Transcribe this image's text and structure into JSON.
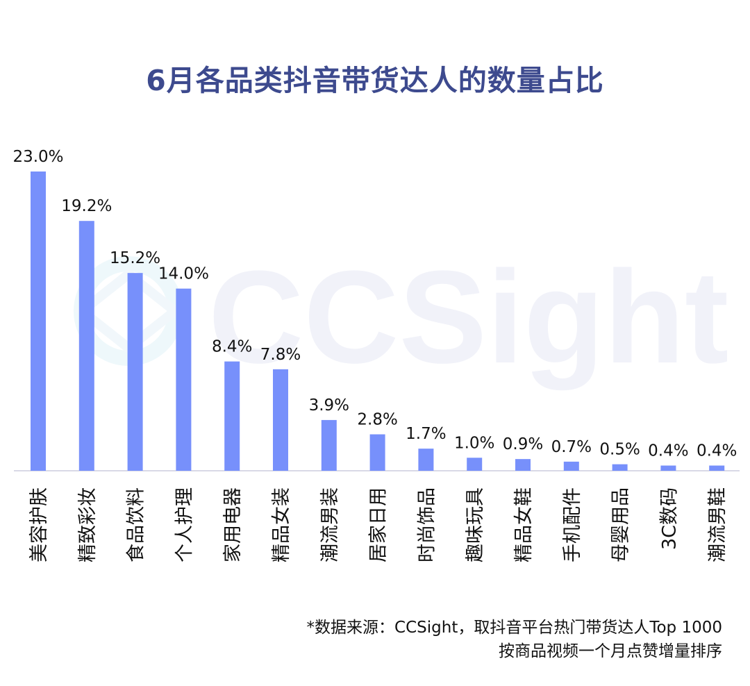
{
  "chart_data": {
    "type": "bar",
    "title": "6月各品类抖音带货达人的数量占比",
    "categories": [
      "美容护肤",
      "精致彩妆",
      "食品饮料",
      "个人护理",
      "家用电器",
      "精品女装",
      "潮流男装",
      "居家日用",
      "时尚饰品",
      "趣味玩具",
      "精品女鞋",
      "手机配件",
      "母婴用品",
      "3C数码",
      "潮流男鞋"
    ],
    "values": [
      23.0,
      19.2,
      15.2,
      14.0,
      8.4,
      7.8,
      3.9,
      2.8,
      1.7,
      1.0,
      0.9,
      0.7,
      0.5,
      0.4,
      0.4
    ],
    "data_labels": [
      "23.0%",
      "19.2%",
      "15.2%",
      "14.0%",
      "8.4%",
      "7.8%",
      "3.9%",
      "2.8%",
      "1.7%",
      "1.0%",
      "0.9%",
      "0.7%",
      "0.5%",
      "0.4%",
      "0.4%"
    ],
    "xlabel": "",
    "ylabel": "",
    "ylim": [
      0,
      23.0
    ],
    "grid": false,
    "legend": "none",
    "bar_color": "#7790fb",
    "axis_color": "#d9d9e6"
  },
  "watermark": {
    "text": "CCSight",
    "color": "#f1f2f9"
  },
  "source": {
    "line1": "*数据来源：CCSight，取抖音平台热门带货达人Top 1000",
    "line2": "按商品视频一个月点赞增量排序"
  }
}
